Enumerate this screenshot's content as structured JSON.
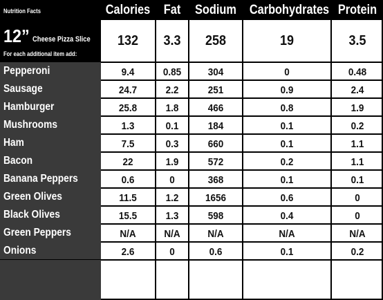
{
  "header": {
    "title": "Nutrition Facts",
    "columns": [
      "Calories",
      "Fat",
      "Sodium",
      "Carbohydrates",
      "Protein"
    ]
  },
  "base_item": {
    "size": "12”",
    "name": "Cheese Pizza Slice",
    "values": [
      "132",
      "3.3",
      "258",
      "19",
      "3.5"
    ]
  },
  "additional_note": "For each additional item add:",
  "items": [
    {
      "label": "Pepperoni",
      "values": [
        "9.4",
        "0.85",
        "304",
        "0",
        "0.48"
      ]
    },
    {
      "label": "Sausage",
      "values": [
        "24.7",
        "2.2",
        "251",
        "0.9",
        "2.4"
      ]
    },
    {
      "label": "Hamburger",
      "values": [
        "25.8",
        "1.8",
        "466",
        "0.8",
        "1.9"
      ]
    },
    {
      "label": "Mushrooms",
      "values": [
        "1.3",
        "0.1",
        "184",
        "0.1",
        "0.2"
      ]
    },
    {
      "label": "Ham",
      "values": [
        "7.5",
        "0.3",
        "660",
        "0.1",
        "1.1"
      ]
    },
    {
      "label": "Bacon",
      "values": [
        "22",
        "1.9",
        "572",
        "0.2",
        "1.1"
      ]
    },
    {
      "label": "Banana Peppers",
      "values": [
        "0.6",
        "0",
        "368",
        "0.1",
        "0.1"
      ]
    },
    {
      "label": "Green Olives",
      "values": [
        "11.5",
        "1.2",
        "1656",
        "0.6",
        "0"
      ]
    },
    {
      "label": "Black Olives",
      "values": [
        "15.5",
        "1.3",
        "598",
        "0.4",
        "0"
      ]
    },
    {
      "label": "Green Peppers",
      "values": [
        "N/A",
        "N/A",
        "N/A",
        "N/A",
        "N/A"
      ]
    },
    {
      "label": "Onions",
      "values": [
        "2.6",
        "0",
        "0.6",
        "0.1",
        "0.2"
      ]
    }
  ],
  "colors": {
    "header_bg": "#000000",
    "label_panel_bg": "#3a3a3a",
    "grid": "#000000",
    "cell_bg": "#ffffff"
  }
}
